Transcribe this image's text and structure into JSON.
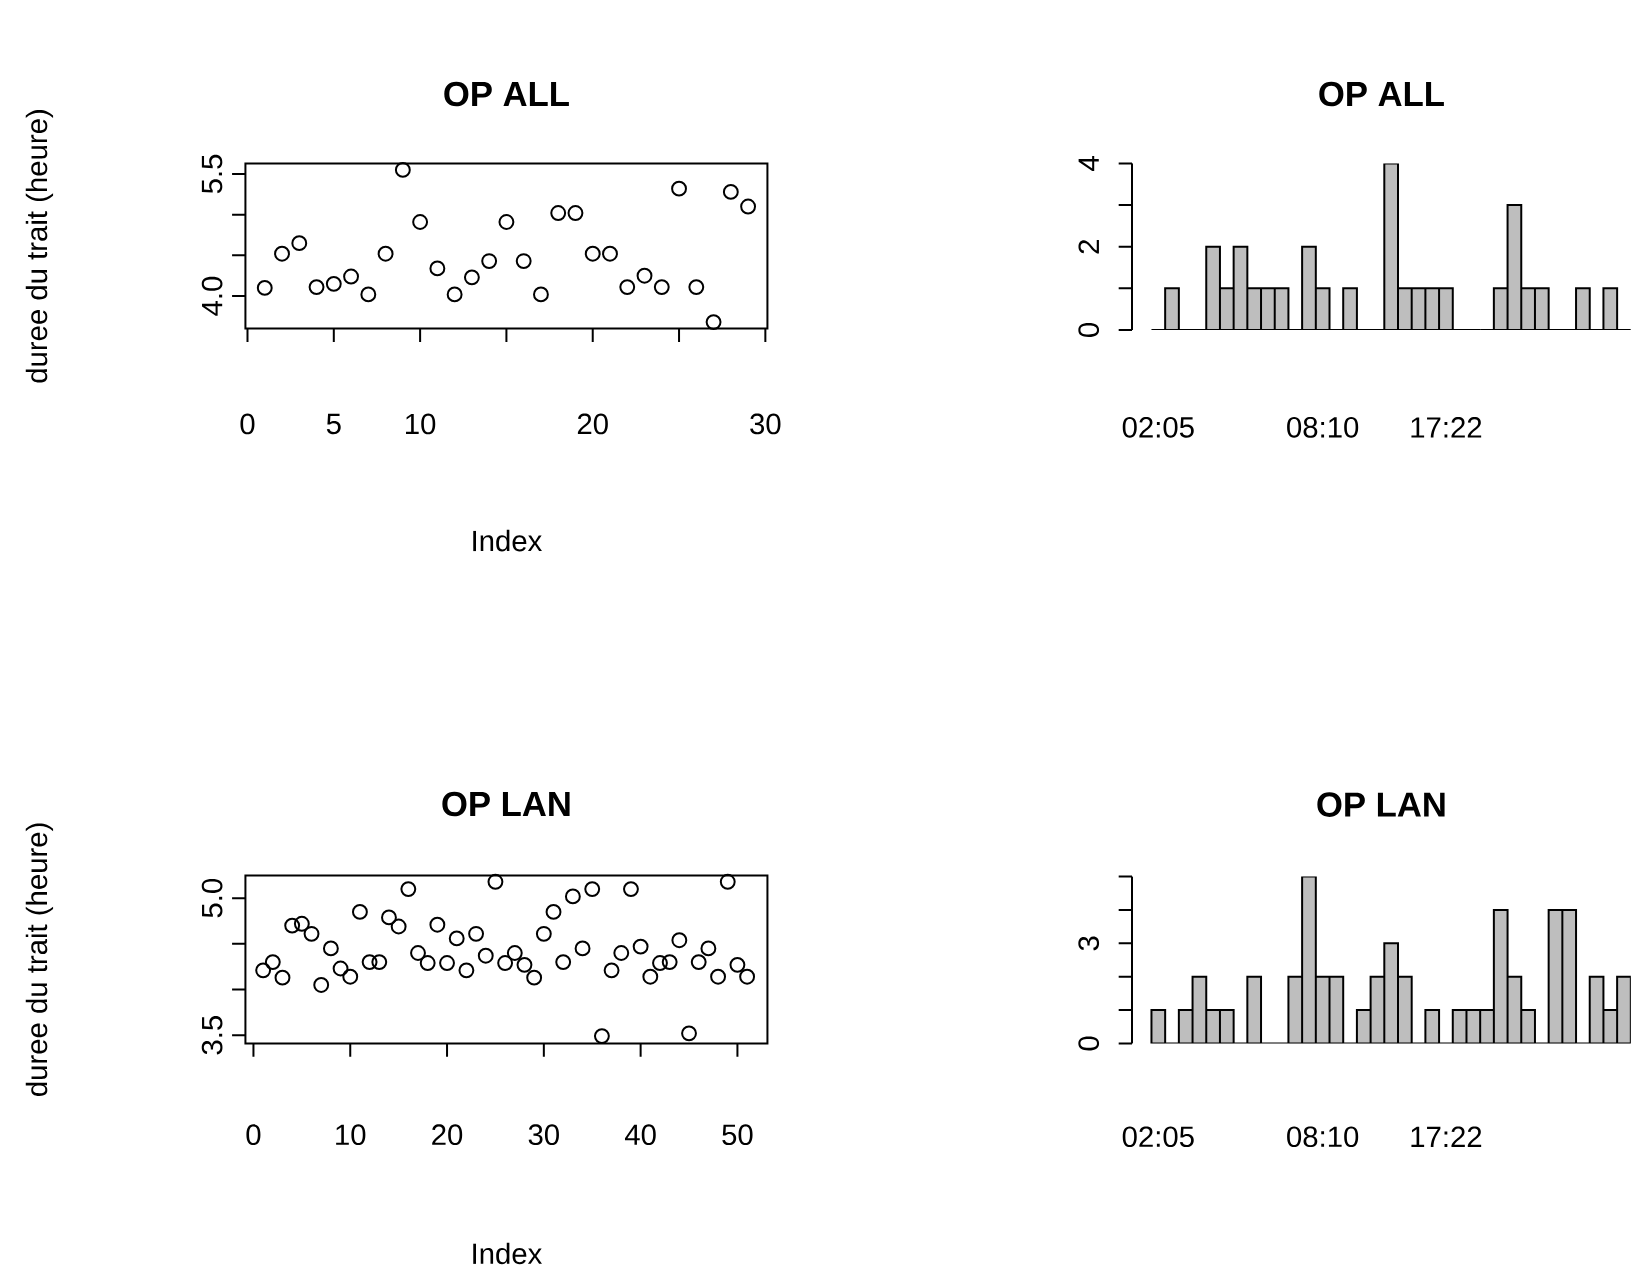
{
  "chart_data": [
    {
      "type": "scatter",
      "title": "OP ALL",
      "xlabel": "Index",
      "ylabel": "duree du trait (heure)",
      "marker": "circle",
      "color": "#000000",
      "x": [
        1,
        2,
        3,
        4,
        5,
        6,
        7,
        8,
        9,
        10,
        11,
        12,
        13,
        14,
        15,
        16,
        17,
        18,
        19,
        20,
        21,
        22,
        23,
        24,
        25,
        26,
        27,
        28,
        29
      ],
      "values": [
        4.1,
        4.52,
        4.65,
        4.11,
        4.15,
        4.24,
        4.02,
        4.52,
        5.55,
        4.91,
        4.34,
        4.02,
        4.23,
        4.43,
        4.91,
        4.43,
        4.02,
        5.02,
        5.02,
        4.52,
        4.52,
        4.11,
        4.25,
        4.11,
        5.32,
        4.11,
        3.68,
        5.28,
        5.1
      ],
      "xlim": [
        -0.12,
        30.12
      ],
      "ylim": [
        3.6,
        5.63
      ],
      "xticks": [
        0,
        5,
        10,
        {
          "value": 15,
          "label": null
        },
        20,
        {
          "value": 25,
          "label": null
        },
        30
      ],
      "yticks": [
        {
          "value": 4,
          "label": "4.0"
        },
        {
          "value": 4.5,
          "label": null
        },
        {
          "value": 5,
          "label": null
        },
        5.5
      ]
    },
    {
      "type": "bar",
      "title": "OP ALL",
      "color": "#bebebe",
      "categories": [
        "02:05",
        null,
        null,
        null,
        null,
        null,
        null,
        null,
        null,
        null,
        null,
        null,
        "08:10",
        null,
        null,
        null,
        null,
        null,
        null,
        null,
        null,
        "17:22",
        null,
        null,
        null,
        null,
        null,
        null,
        null,
        null,
        null,
        null,
        null,
        null,
        null
      ],
      "values": [
        0,
        1,
        0,
        0,
        2,
        1,
        2,
        1,
        1,
        1,
        0,
        2,
        1,
        0,
        1,
        0,
        0,
        4,
        1,
        1,
        1,
        1,
        0,
        0,
        0,
        1,
        3,
        1,
        1,
        0,
        0,
        1,
        0,
        1,
        0
      ],
      "ylim": [
        0,
        4
      ],
      "yticks": [
        0,
        {
          "value": 1,
          "label": null
        },
        2,
        {
          "value": 3,
          "label": null
        },
        4
      ]
    },
    {
      "type": "scatter",
      "title": "OP LAN",
      "xlabel": "Index",
      "ylabel": "duree du trait (heure)",
      "marker": "circle",
      "color": "#000000",
      "x": [
        1,
        2,
        3,
        4,
        5,
        6,
        7,
        8,
        9,
        10,
        11,
        12,
        13,
        14,
        15,
        16,
        17,
        18,
        19,
        20,
        21,
        22,
        23,
        24,
        25,
        26,
        27,
        28,
        29,
        30,
        31,
        32,
        33,
        34,
        35,
        36,
        37,
        38,
        39,
        40,
        41,
        42,
        43,
        44,
        45,
        46,
        47,
        48,
        49,
        50,
        51
      ],
      "values": [
        4.21,
        4.3,
        4.13,
        4.7,
        4.72,
        4.61,
        4.05,
        4.45,
        4.23,
        4.14,
        4.85,
        4.3,
        4.3,
        4.79,
        4.69,
        5.1,
        4.4,
        4.29,
        4.71,
        4.29,
        4.56,
        4.21,
        4.61,
        4.37,
        5.18,
        4.29,
        4.4,
        4.27,
        4.13,
        4.61,
        4.85,
        4.3,
        5.02,
        4.45,
        5.1,
        3.49,
        4.21,
        4.4,
        5.1,
        4.47,
        4.14,
        4.29,
        4.3,
        4.54,
        3.52,
        4.3,
        4.45,
        4.14,
        5.18,
        4.27,
        4.14
      ],
      "xlim": [
        -0.83,
        53.1
      ],
      "ylim": [
        3.41,
        5.25
      ],
      "xticks": [
        0,
        10,
        20,
        30,
        40,
        50
      ],
      "yticks": [
        3.5,
        {
          "value": 4,
          "label": null
        },
        {
          "value": 4.5,
          "label": null
        },
        {
          "value": 5,
          "label": "5.0"
        }
      ]
    },
    {
      "type": "bar",
      "title": "OP LAN",
      "color": "#bebebe",
      "categories": [
        "02:05",
        null,
        null,
        null,
        null,
        null,
        null,
        null,
        null,
        null,
        null,
        null,
        "08:10",
        null,
        null,
        null,
        null,
        null,
        null,
        null,
        null,
        "17:22",
        null,
        null,
        null,
        null,
        null,
        null,
        null,
        null,
        null,
        null,
        null,
        null,
        null
      ],
      "values": [
        1,
        0,
        1,
        2,
        1,
        1,
        0,
        2,
        0,
        0,
        2,
        5,
        2,
        2,
        0,
        1,
        2,
        3,
        2,
        0,
        1,
        0,
        1,
        1,
        1,
        4,
        2,
        1,
        0,
        4,
        4,
        0,
        2,
        1,
        2
      ],
      "ylim": [
        0,
        5
      ],
      "yticks": [
        0,
        {
          "value": 1,
          "label": null
        },
        {
          "value": 2,
          "label": null
        },
        3,
        {
          "value": 4,
          "label": null
        },
        {
          "value": 5,
          "label": null
        }
      ]
    }
  ]
}
